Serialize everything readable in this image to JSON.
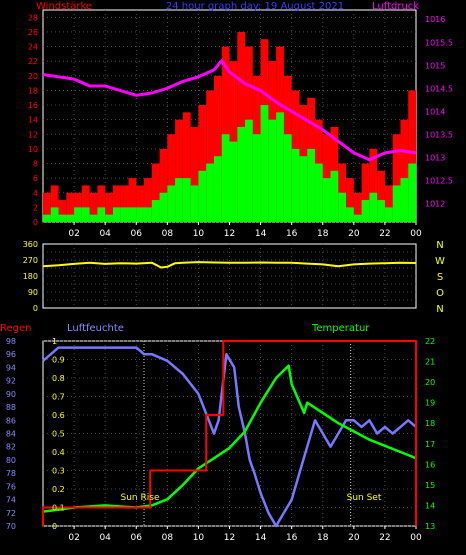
{
  "chart_data": [
    {
      "type": "bar",
      "title": "24 hour graph day: 19 August 2021",
      "ylabel_left": "Windstärke",
      "ylabel_right": "Luftdruck",
      "x_ticks": [
        "02",
        "04",
        "06",
        "08",
        "10",
        "12",
        "14",
        "16",
        "18",
        "20",
        "22",
        "00"
      ],
      "y_ticks_left": [
        0,
        2,
        4,
        6,
        8,
        10,
        12,
        14,
        16,
        18,
        20,
        22,
        24,
        26,
        28
      ],
      "y_ticks_right": [
        1012,
        1012.5,
        1013,
        1013.5,
        1014,
        1014.5,
        1015,
        1015.5,
        1016
      ],
      "ylim_left": [
        0,
        29
      ],
      "ylim_right": [
        1011.6,
        1016.2
      ],
      "grid": true,
      "series": [
        {
          "name": "Windstärke",
          "type": "bar",
          "color": "#ff0000",
          "hours": [
            0,
            0.5,
            1,
            1.5,
            2,
            2.5,
            3,
            3.5,
            4,
            4.5,
            5,
            5.5,
            6,
            6.5,
            7,
            7.5,
            8,
            8.5,
            9,
            9.5,
            10,
            10.5,
            11,
            11.5,
            12,
            12.5,
            13,
            13.5,
            14,
            14.5,
            15,
            15.5,
            16,
            16.5,
            17,
            17.5,
            18,
            18.5,
            19,
            19.5,
            20,
            20.5,
            21,
            21.5,
            22,
            22.5,
            23,
            23.5
          ],
          "values": [
            4,
            5,
            3,
            4,
            4,
            5,
            4,
            5,
            4,
            5,
            5,
            6,
            5,
            6,
            8,
            10,
            12,
            14,
            15,
            13,
            16,
            18,
            20,
            24,
            22,
            26,
            24,
            20,
            25,
            22,
            24,
            20,
            18,
            16,
            17,
            14,
            12,
            13,
            8,
            6,
            4,
            8,
            10,
            7,
            5,
            12,
            14,
            18
          ]
        },
        {
          "name": "Windstärke",
          "type": "bar",
          "color": "#00ff00",
          "hours": [
            0,
            0.5,
            1,
            1.5,
            2,
            2.5,
            3,
            3.5,
            4,
            4.5,
            5,
            5.5,
            6,
            6.5,
            7,
            7.5,
            8,
            8.5,
            9,
            9.5,
            10,
            10.5,
            11,
            11.5,
            12,
            12.5,
            13,
            13.5,
            14,
            14.5,
            15,
            15.5,
            16,
            16.5,
            17,
            17.5,
            18,
            18.5,
            19,
            19.5,
            20,
            20.5,
            21,
            21.5,
            22,
            22.5,
            23,
            23.5
          ],
          "values": [
            1,
            2,
            1,
            1,
            2,
            2,
            1,
            2,
            1,
            2,
            2,
            2,
            2,
            2,
            3,
            4,
            5,
            6,
            6,
            5,
            7,
            8,
            9,
            12,
            11,
            13,
            14,
            12,
            16,
            14,
            15,
            12,
            10,
            9,
            10,
            8,
            6,
            7,
            4,
            2,
            1,
            3,
            4,
            3,
            2,
            5,
            6,
            8
          ]
        },
        {
          "name": "Luftdruck",
          "type": "line",
          "color": "#ff00ff",
          "x": [
            0,
            1,
            2,
            3,
            4,
            5,
            6,
            7,
            8,
            9,
            10,
            11,
            11.5,
            12,
            13,
            14,
            15,
            16,
            17,
            18,
            19,
            20,
            21,
            22,
            23,
            24
          ],
          "y": [
            1014.8,
            1014.75,
            1014.7,
            1014.55,
            1014.55,
            1014.45,
            1014.35,
            1014.4,
            1014.5,
            1014.65,
            1014.75,
            1014.9,
            1015.1,
            1014.85,
            1014.6,
            1014.45,
            1014.2,
            1014.0,
            1013.8,
            1013.6,
            1013.35,
            1013.1,
            1012.95,
            1013.1,
            1013.15,
            1013.1
          ]
        }
      ]
    },
    {
      "type": "line",
      "ylabel_right": [
        "N",
        "W",
        "S",
        "O",
        "N"
      ],
      "y_ticks_left": [
        0,
        45,
        90,
        135,
        180,
        225,
        270,
        315,
        360
      ],
      "ylim": [
        0,
        360
      ],
      "grid": true,
      "series": [
        {
          "color": "#ffff00",
          "x": [
            0,
            1,
            2,
            3,
            4,
            5,
            6,
            7,
            7.6,
            8,
            8.5,
            9,
            10,
            11,
            12,
            13,
            14,
            15,
            16,
            17,
            18,
            19,
            20,
            21,
            22,
            23,
            24
          ],
          "y": [
            235,
            240,
            248,
            255,
            248,
            252,
            250,
            255,
            228,
            232,
            252,
            255,
            258,
            256,
            255,
            254,
            256,
            255,
            254,
            250,
            245,
            235,
            245,
            250,
            252,
            255,
            253
          ]
        }
      ]
    },
    {
      "type": "line",
      "title_left": "Regen",
      "title_center": "Luftfeuchte",
      "title_right": "Temperatur",
      "y_ticks_rain": [
        0,
        0.1,
        0.2,
        0.3,
        0.4,
        0.5,
        0.6,
        0.7,
        0.8,
        0.9,
        1
      ],
      "y_ticks_humidity": [
        70,
        72,
        74,
        76,
        78,
        80,
        82,
        84,
        86,
        88,
        90,
        92,
        94,
        96,
        98
      ],
      "y_ticks_temperature": [
        13,
        14,
        15,
        16,
        17,
        18,
        19,
        20,
        21,
        22
      ],
      "annotations": [
        "Sun Rise",
        "Sun Set"
      ],
      "grid": true,
      "series": [
        {
          "name": "Regen",
          "color": "#ff0000",
          "x": [
            0,
            0,
            6.9,
            6.9,
            10.5,
            10.5,
            11.6,
            11.6,
            24,
            24
          ],
          "y": [
            0,
            0.1,
            0.1,
            0.3,
            0.3,
            0.6,
            0.6,
            1.0,
            1.0,
            0
          ]
        },
        {
          "name": "Luftfeuchte",
          "color": "#7777ff",
          "x": [
            0,
            0.5,
            1,
            2,
            3,
            4,
            5,
            6,
            6.5,
            7,
            8,
            9,
            10,
            11,
            11.3,
            11.8,
            12.3,
            12.6,
            13,
            13.3,
            13.6,
            14,
            14.5,
            15,
            15.5,
            16,
            16.5,
            17,
            17.5,
            18,
            18.5,
            19,
            19.5,
            20,
            20.5,
            21,
            21.5,
            22,
            22.5,
            23,
            23.5,
            24
          ],
          "y": [
            95,
            96,
            97,
            97,
            97,
            97,
            97,
            97,
            96,
            96,
            95,
            93,
            90,
            84,
            86,
            96,
            94,
            88,
            84,
            80,
            78,
            75,
            72,
            70,
            72,
            74,
            78,
            82,
            86,
            84,
            82,
            84,
            86,
            86,
            85,
            86,
            84,
            85,
            84,
            85,
            86,
            85
          ]
        },
        {
          "name": "Temperatur",
          "color": "#00ff00",
          "x": [
            0,
            1,
            2,
            3,
            4,
            5,
            6,
            7,
            8,
            9,
            10,
            11,
            12,
            13,
            14,
            15,
            15.8,
            16,
            16.8,
            17,
            18,
            19,
            20,
            21,
            22,
            23,
            24
          ],
          "y": [
            13.7,
            13.8,
            13.9,
            13.95,
            14,
            13.95,
            13.9,
            14,
            14.3,
            15,
            15.8,
            16.3,
            16.8,
            17.6,
            19,
            20.2,
            20.8,
            19.9,
            18.5,
            19,
            18.5,
            18,
            17.6,
            17.2,
            16.9,
            16.6,
            16.3
          ]
        }
      ]
    }
  ]
}
